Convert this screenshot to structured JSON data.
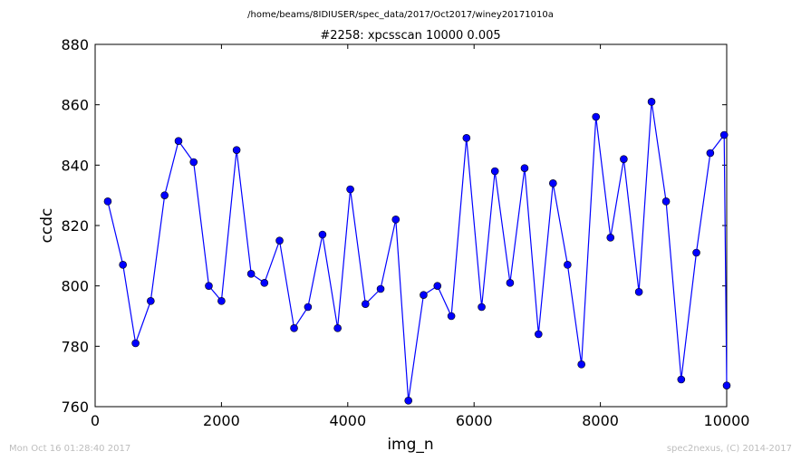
{
  "figure": {
    "suptitle": "/home/beams/8IDIUSER/spec_data/2017/Oct2017/winey20171010a",
    "timestamp": "Mon Oct 16 01:28:40 2017",
    "credit": "spec2nexus, (C) 2014-2017"
  },
  "chart_data": {
    "type": "line",
    "title": "#2258: xpcsscan 10000 0.005",
    "xlabel": "img_n",
    "ylabel": "ccdc",
    "xlim": [
      0,
      10000
    ],
    "ylim": [
      760,
      880
    ],
    "xticks": [
      0,
      2000,
      4000,
      6000,
      8000,
      10000
    ],
    "yticks": [
      760,
      780,
      800,
      820,
      840,
      860,
      880
    ],
    "grid": false,
    "line_color": "#0000ff",
    "marker_color": "#0000ff",
    "marker": "circle",
    "series": [
      {
        "points": [
          [
            200,
            828
          ],
          [
            440,
            807
          ],
          [
            640,
            781
          ],
          [
            880,
            795
          ],
          [
            1100,
            830
          ],
          [
            1320,
            848
          ],
          [
            1560,
            841
          ],
          [
            1800,
            800
          ],
          [
            2000,
            795
          ],
          [
            2240,
            845
          ],
          [
            2470,
            804
          ],
          [
            2680,
            801
          ],
          [
            2920,
            815
          ],
          [
            3150,
            786
          ],
          [
            3370,
            793
          ],
          [
            3600,
            817
          ],
          [
            3840,
            786
          ],
          [
            4040,
            832
          ],
          [
            4280,
            794
          ],
          [
            4520,
            799
          ],
          [
            4760,
            822
          ],
          [
            4960,
            762
          ],
          [
            5200,
            797
          ],
          [
            5420,
            800
          ],
          [
            5640,
            790
          ],
          [
            5880,
            849
          ],
          [
            6120,
            793
          ],
          [
            6330,
            838
          ],
          [
            6570,
            801
          ],
          [
            6800,
            839
          ],
          [
            7020,
            784
          ],
          [
            7250,
            834
          ],
          [
            7480,
            807
          ],
          [
            7700,
            774
          ],
          [
            7930,
            856
          ],
          [
            8160,
            816
          ],
          [
            8370,
            842
          ],
          [
            8610,
            798
          ],
          [
            8810,
            861
          ],
          [
            9040,
            828
          ],
          [
            9280,
            769
          ],
          [
            9520,
            811
          ],
          [
            9740,
            844
          ],
          [
            9960,
            850
          ],
          [
            10000,
            767
          ]
        ]
      }
    ]
  }
}
